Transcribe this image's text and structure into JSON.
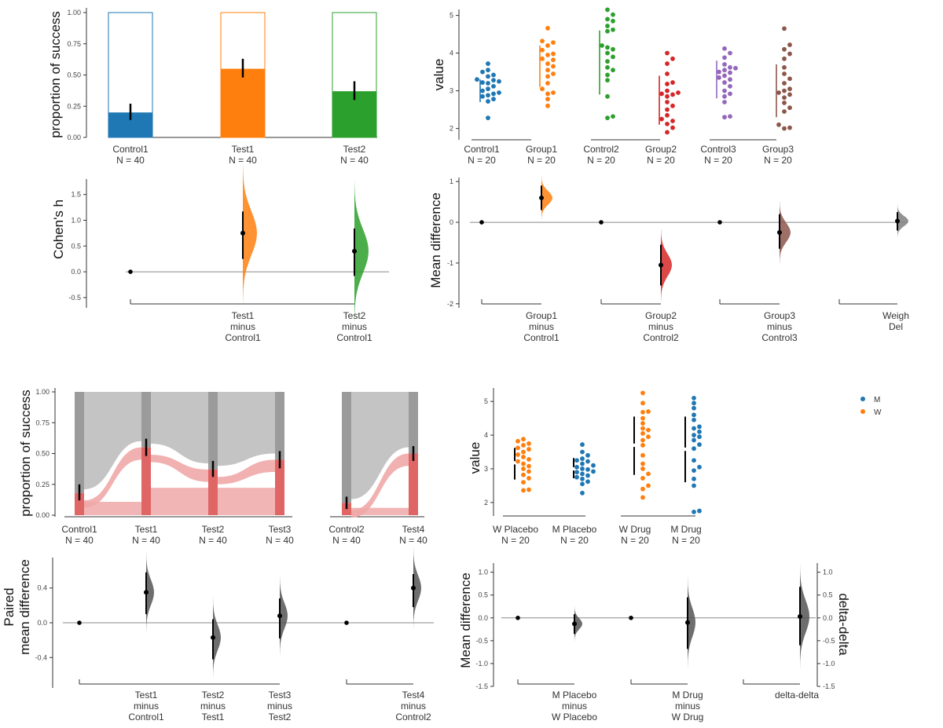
{
  "colors": {
    "blue": "#1f77b4",
    "orange": "#ff7f0e",
    "green": "#2ca02c",
    "red": "#d62728",
    "purple": "#9467bd",
    "brown": "#8c564b",
    "grey": "#808080",
    "paired_red": "#e06666",
    "paired_pink": "#f0a8a8",
    "paired_grey": "#9b9b9b",
    "paired_lightgrey": "#c4c4c4"
  },
  "chart_data": [
    {
      "id": "A1",
      "type": "bar",
      "title": "",
      "ylabel": "proportion of success",
      "ylim": [
        0,
        1
      ],
      "yticks": [
        "0.00",
        "0.25",
        "0.50",
        "0.75",
        "1.00"
      ],
      "categories": [
        "Control1",
        "Test1",
        "Test2"
      ],
      "n_labels": [
        "N = 40",
        "N = 40",
        "N = 40"
      ],
      "values": [
        0.2,
        0.55,
        0.37
      ],
      "ci_low": [
        0.14,
        0.48,
        0.3
      ],
      "ci_high": [
        0.27,
        0.63,
        0.45
      ],
      "series_colors": [
        "blue",
        "orange",
        "green"
      ]
    },
    {
      "id": "A2",
      "type": "scatter",
      "ylabel": "value",
      "ylim": [
        1.7,
        5.2
      ],
      "yticks": [
        "2",
        "3",
        "4",
        "5"
      ],
      "categories": [
        "Control1",
        "Group1",
        "Control2",
        "Group2",
        "Control3",
        "Group3"
      ],
      "n_labels": [
        "N = 20",
        "N = 20",
        "N = 20",
        "N = 20",
        "N = 20",
        "N = 20"
      ],
      "series_colors": [
        "blue",
        "orange",
        "green",
        "red",
        "purple",
        "brown"
      ],
      "points": [
        [
          3.72,
          3.55,
          3.5,
          3.42,
          3.38,
          3.3,
          3.28,
          3.25,
          3.22,
          3.2,
          3.12,
          3.05,
          3.0,
          2.95,
          2.92,
          2.88,
          2.85,
          2.78,
          2.72,
          2.28
        ],
        [
          4.66,
          4.32,
          4.28,
          4.2,
          4.08,
          3.98,
          3.95,
          3.85,
          3.82,
          3.72,
          3.65,
          3.55,
          3.45,
          3.38,
          3.2,
          3.05,
          2.95,
          2.92,
          2.78,
          2.6
        ],
        [
          5.15,
          5.02,
          4.9,
          4.85,
          4.72,
          4.62,
          4.58,
          4.2,
          4.15,
          4.1,
          4.0,
          3.9,
          3.78,
          3.62,
          3.55,
          3.42,
          3.28,
          2.85,
          2.32,
          2.28
        ],
        [
          4.0,
          3.85,
          3.72,
          3.45,
          3.22,
          3.18,
          3.0,
          2.95,
          2.92,
          2.9,
          2.85,
          2.7,
          2.6,
          2.5,
          2.35,
          2.25,
          2.2,
          2.12,
          2.02,
          1.9
        ],
        [
          4.12,
          4.0,
          3.88,
          3.7,
          3.62,
          3.6,
          3.55,
          3.5,
          3.48,
          3.4,
          3.35,
          3.3,
          3.22,
          3.12,
          3.0,
          2.92,
          2.85,
          2.7,
          2.32,
          2.3
        ],
        [
          4.65,
          4.22,
          4.1,
          3.98,
          3.85,
          3.62,
          3.45,
          3.32,
          3.2,
          3.05,
          3.0,
          2.95,
          2.9,
          2.82,
          2.68,
          2.55,
          2.45,
          2.1,
          2.02,
          2.0
        ]
      ],
      "sd_low": [
        2.7,
        3.1,
        2.9,
        2.1,
        2.8,
        2.3
      ],
      "sd_high": [
        3.3,
        4.2,
        4.6,
        3.4,
        3.8,
        3.7
      ]
    },
    {
      "id": "A3",
      "type": "scatter",
      "ylabel": "Cohen's h",
      "ylim": [
        -0.7,
        1.8
      ],
      "yticks": [
        "-0.5",
        "0.0",
        "0.5",
        "1.0",
        "1.5"
      ],
      "groups": [
        {
          "label": [
            "Test1",
            "minus",
            "Control1"
          ],
          "diff": 0.75,
          "ci": [
            0.25,
            1.17
          ],
          "color": "orange"
        },
        {
          "label": [
            "Test2",
            "minus",
            "Control1"
          ],
          "diff": 0.4,
          "ci": [
            -0.08,
            0.84
          ],
          "color": "green"
        }
      ]
    },
    {
      "id": "A4",
      "type": "scatter",
      "ylabel": "Mean difference",
      "ylim": [
        -2.1,
        1.1
      ],
      "yticks": [
        "-2",
        "-1",
        "0",
        "1"
      ],
      "groups": [
        {
          "label": [
            "Group1",
            "minus",
            "Control1"
          ],
          "diff": 0.6,
          "ci": [
            0.3,
            0.9
          ],
          "color": "orange"
        },
        {
          "label": [
            "Group2",
            "minus",
            "Control2"
          ],
          "diff": -1.05,
          "ci": [
            -1.55,
            -0.55
          ],
          "color": "red"
        },
        {
          "label": [
            "Group3",
            "minus",
            "Control3"
          ],
          "diff": -0.25,
          "ci": [
            -0.65,
            0.2
          ],
          "color": "brown"
        },
        {
          "label": [
            "Weigh",
            "Del"
          ],
          "diff": 0.03,
          "ci": [
            -0.2,
            0.25
          ],
          "color": "grey"
        }
      ]
    },
    {
      "id": "B1",
      "type": "bar",
      "ylabel": "proportion of success",
      "ylim": [
        0,
        1
      ],
      "yticks": [
        "0.00",
        "0.25",
        "0.50",
        "0.75",
        "1.00"
      ],
      "categories": [
        "Control1",
        "Test1",
        "Test2",
        "Test3",
        "Control2",
        "Test4"
      ],
      "n_labels": [
        "N = 40",
        "N = 40",
        "N = 40",
        "N = 40",
        "N = 40",
        "N = 40"
      ],
      "values": [
        0.18,
        0.55,
        0.37,
        0.45,
        0.1,
        0.5
      ],
      "ci_low": [
        0.12,
        0.48,
        0.31,
        0.38,
        0.05,
        0.44
      ],
      "ci_high": [
        0.25,
        0.62,
        0.44,
        0.52,
        0.15,
        0.56
      ]
    },
    {
      "id": "B2",
      "type": "scatter",
      "ylabel": "value",
      "ylim": [
        1.6,
        5.4
      ],
      "yticks": [
        "2",
        "3",
        "4",
        "5"
      ],
      "categories": [
        "W Placebo",
        "M Placebo",
        "W Drug",
        "M Drug"
      ],
      "n_labels": [
        "N = 20",
        "N = 20",
        "N = 20",
        "N = 20"
      ],
      "legend": [
        {
          "label": "M",
          "color": "blue"
        },
        {
          "label": "W",
          "color": "orange"
        }
      ],
      "series_colors": [
        "orange",
        "blue",
        "orange",
        "blue"
      ],
      "points": [
        [
          3.88,
          3.82,
          3.75,
          3.7,
          3.62,
          3.58,
          3.5,
          3.42,
          3.35,
          3.28,
          3.22,
          3.15,
          3.08,
          3.0,
          2.92,
          2.82,
          2.72,
          2.6,
          2.38,
          2.36
        ],
        [
          3.72,
          3.5,
          3.4,
          3.3,
          3.25,
          3.22,
          3.15,
          3.1,
          3.05,
          3.0,
          2.98,
          2.92,
          2.9,
          2.85,
          2.8,
          2.75,
          2.7,
          2.62,
          2.55,
          2.28
        ],
        [
          5.25,
          4.95,
          4.7,
          4.68,
          4.5,
          4.35,
          4.2,
          4.15,
          4.05,
          3.95,
          3.85,
          3.7,
          3.4,
          3.15,
          3.0,
          2.85,
          2.72,
          2.5,
          2.4,
          2.15
        ],
        [
          5.1,
          4.95,
          4.8,
          4.6,
          4.45,
          4.25,
          4.2,
          4.1,
          4.0,
          3.95,
          3.85,
          3.72,
          3.6,
          3.25,
          3.05,
          2.95,
          2.7,
          2.5,
          1.75,
          1.72
        ]
      ],
      "sd_low": [
        2.68,
        2.72,
        2.82,
        2.6
      ],
      "sd_high": [
        3.62,
        3.32,
        4.55,
        4.55
      ],
      "gaps": [
        3.18,
        3.0,
        3.7,
        3.58
      ]
    },
    {
      "id": "B3",
      "type": "scatter",
      "ylabel": [
        "Paired",
        "mean difference"
      ],
      "ylim": [
        -0.75,
        0.75
      ],
      "yticks": [
        "-0.4",
        "0.0",
        "0.4"
      ],
      "groups": [
        {
          "label": [
            "Test1",
            "minus",
            "Control1"
          ],
          "diff": 0.35,
          "ci": [
            0.1,
            0.58
          ]
        },
        {
          "label": [
            "Test2",
            "minus",
            "Test1"
          ],
          "diff": -0.17,
          "ci": [
            -0.42,
            0.04
          ]
        },
        {
          "label": [
            "Test3",
            "minus",
            "Test2"
          ],
          "diff": 0.08,
          "ci": [
            -0.18,
            0.28
          ]
        },
        {
          "label": [
            "Test4",
            "minus",
            "Control2"
          ],
          "diff": 0.4,
          "ci": [
            0.18,
            0.56
          ]
        }
      ]
    },
    {
      "id": "B4",
      "type": "scatter",
      "ylabel": "Mean difference",
      "y2label": "delta-delta",
      "ylim": [
        -1.5,
        1.2
      ],
      "yticks": [
        "-1.5",
        "-1.0",
        "-0.5",
        "0.0",
        "0.5",
        "1.0"
      ],
      "groups": [
        {
          "label": [
            "M Placebo",
            "minus",
            "W Placebo"
          ],
          "diff": -0.13,
          "ci": [
            -0.35,
            0.08
          ]
        },
        {
          "label": [
            "M Drug",
            "minus",
            "W Drug"
          ],
          "diff": -0.1,
          "ci": [
            -0.68,
            0.45
          ]
        },
        {
          "label": [
            "delta-delta"
          ],
          "diff": 0.03,
          "ci": [
            -0.6,
            0.68
          ]
        }
      ]
    }
  ]
}
